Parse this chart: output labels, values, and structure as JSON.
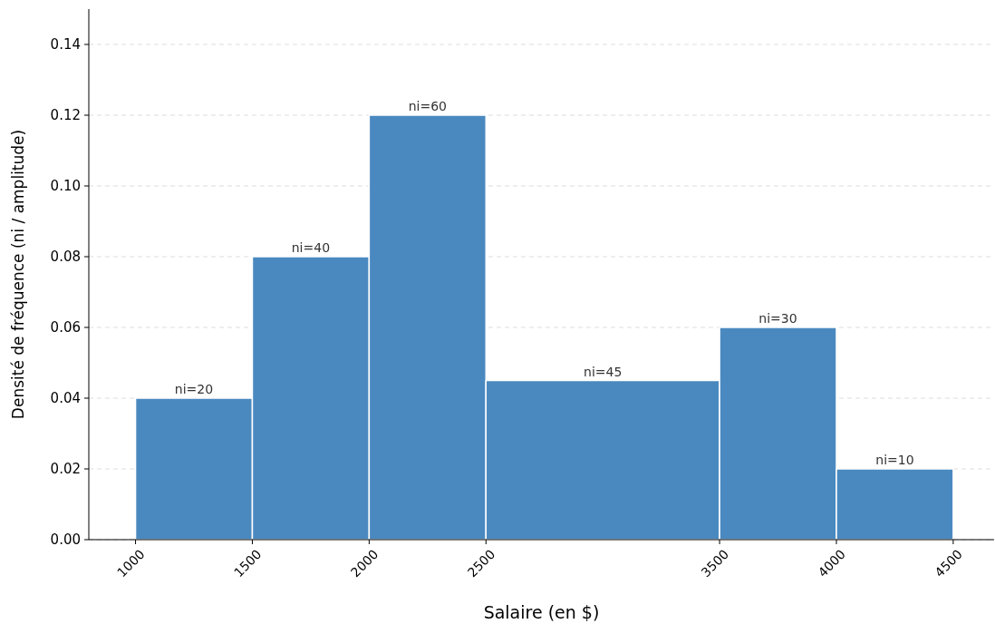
{
  "chart_data": {
    "type": "histogram",
    "xlabel": "Salaire (en $)",
    "ylabel": "Densité de fréquence (ni / amplitude)",
    "bins": [
      1000,
      1500,
      2000,
      2500,
      3500,
      4000,
      4500
    ],
    "values": [
      0.04,
      0.08,
      0.12,
      0.045,
      0.06,
      0.02
    ],
    "annotations": [
      {
        "text": "ni=20",
        "x": 1250,
        "y": 0.04
      },
      {
        "text": "ni=40",
        "x": 1750,
        "y": 0.08
      },
      {
        "text": "ni=60",
        "x": 2250,
        "y": 0.12
      },
      {
        "text": "ni=45",
        "x": 3000,
        "y": 0.045
      },
      {
        "text": "ni=30",
        "x": 3750,
        "y": 0.06
      },
      {
        "text": "ni=10",
        "x": 4250,
        "y": 0.02
      }
    ],
    "color": "#4a89c0",
    "xlim": [
      800,
      4675
    ],
    "xticks": [
      1000,
      1500,
      2000,
      2500,
      3500,
      4000,
      4500
    ],
    "ylim": [
      0,
      0.15
    ],
    "yticks": [
      {
        "value": 0,
        "label": "0.00"
      },
      {
        "value": 0.02,
        "label": "0.02"
      },
      {
        "value": 0.04,
        "label": "0.04"
      },
      {
        "value": 0.06,
        "label": "0.06"
      },
      {
        "value": 0.08,
        "label": "0.08"
      },
      {
        "value": 0.1,
        "label": "0.10"
      },
      {
        "value": 0.12,
        "label": "0.12"
      },
      {
        "value": 0.14,
        "label": "0.14"
      }
    ],
    "grid": "y"
  }
}
